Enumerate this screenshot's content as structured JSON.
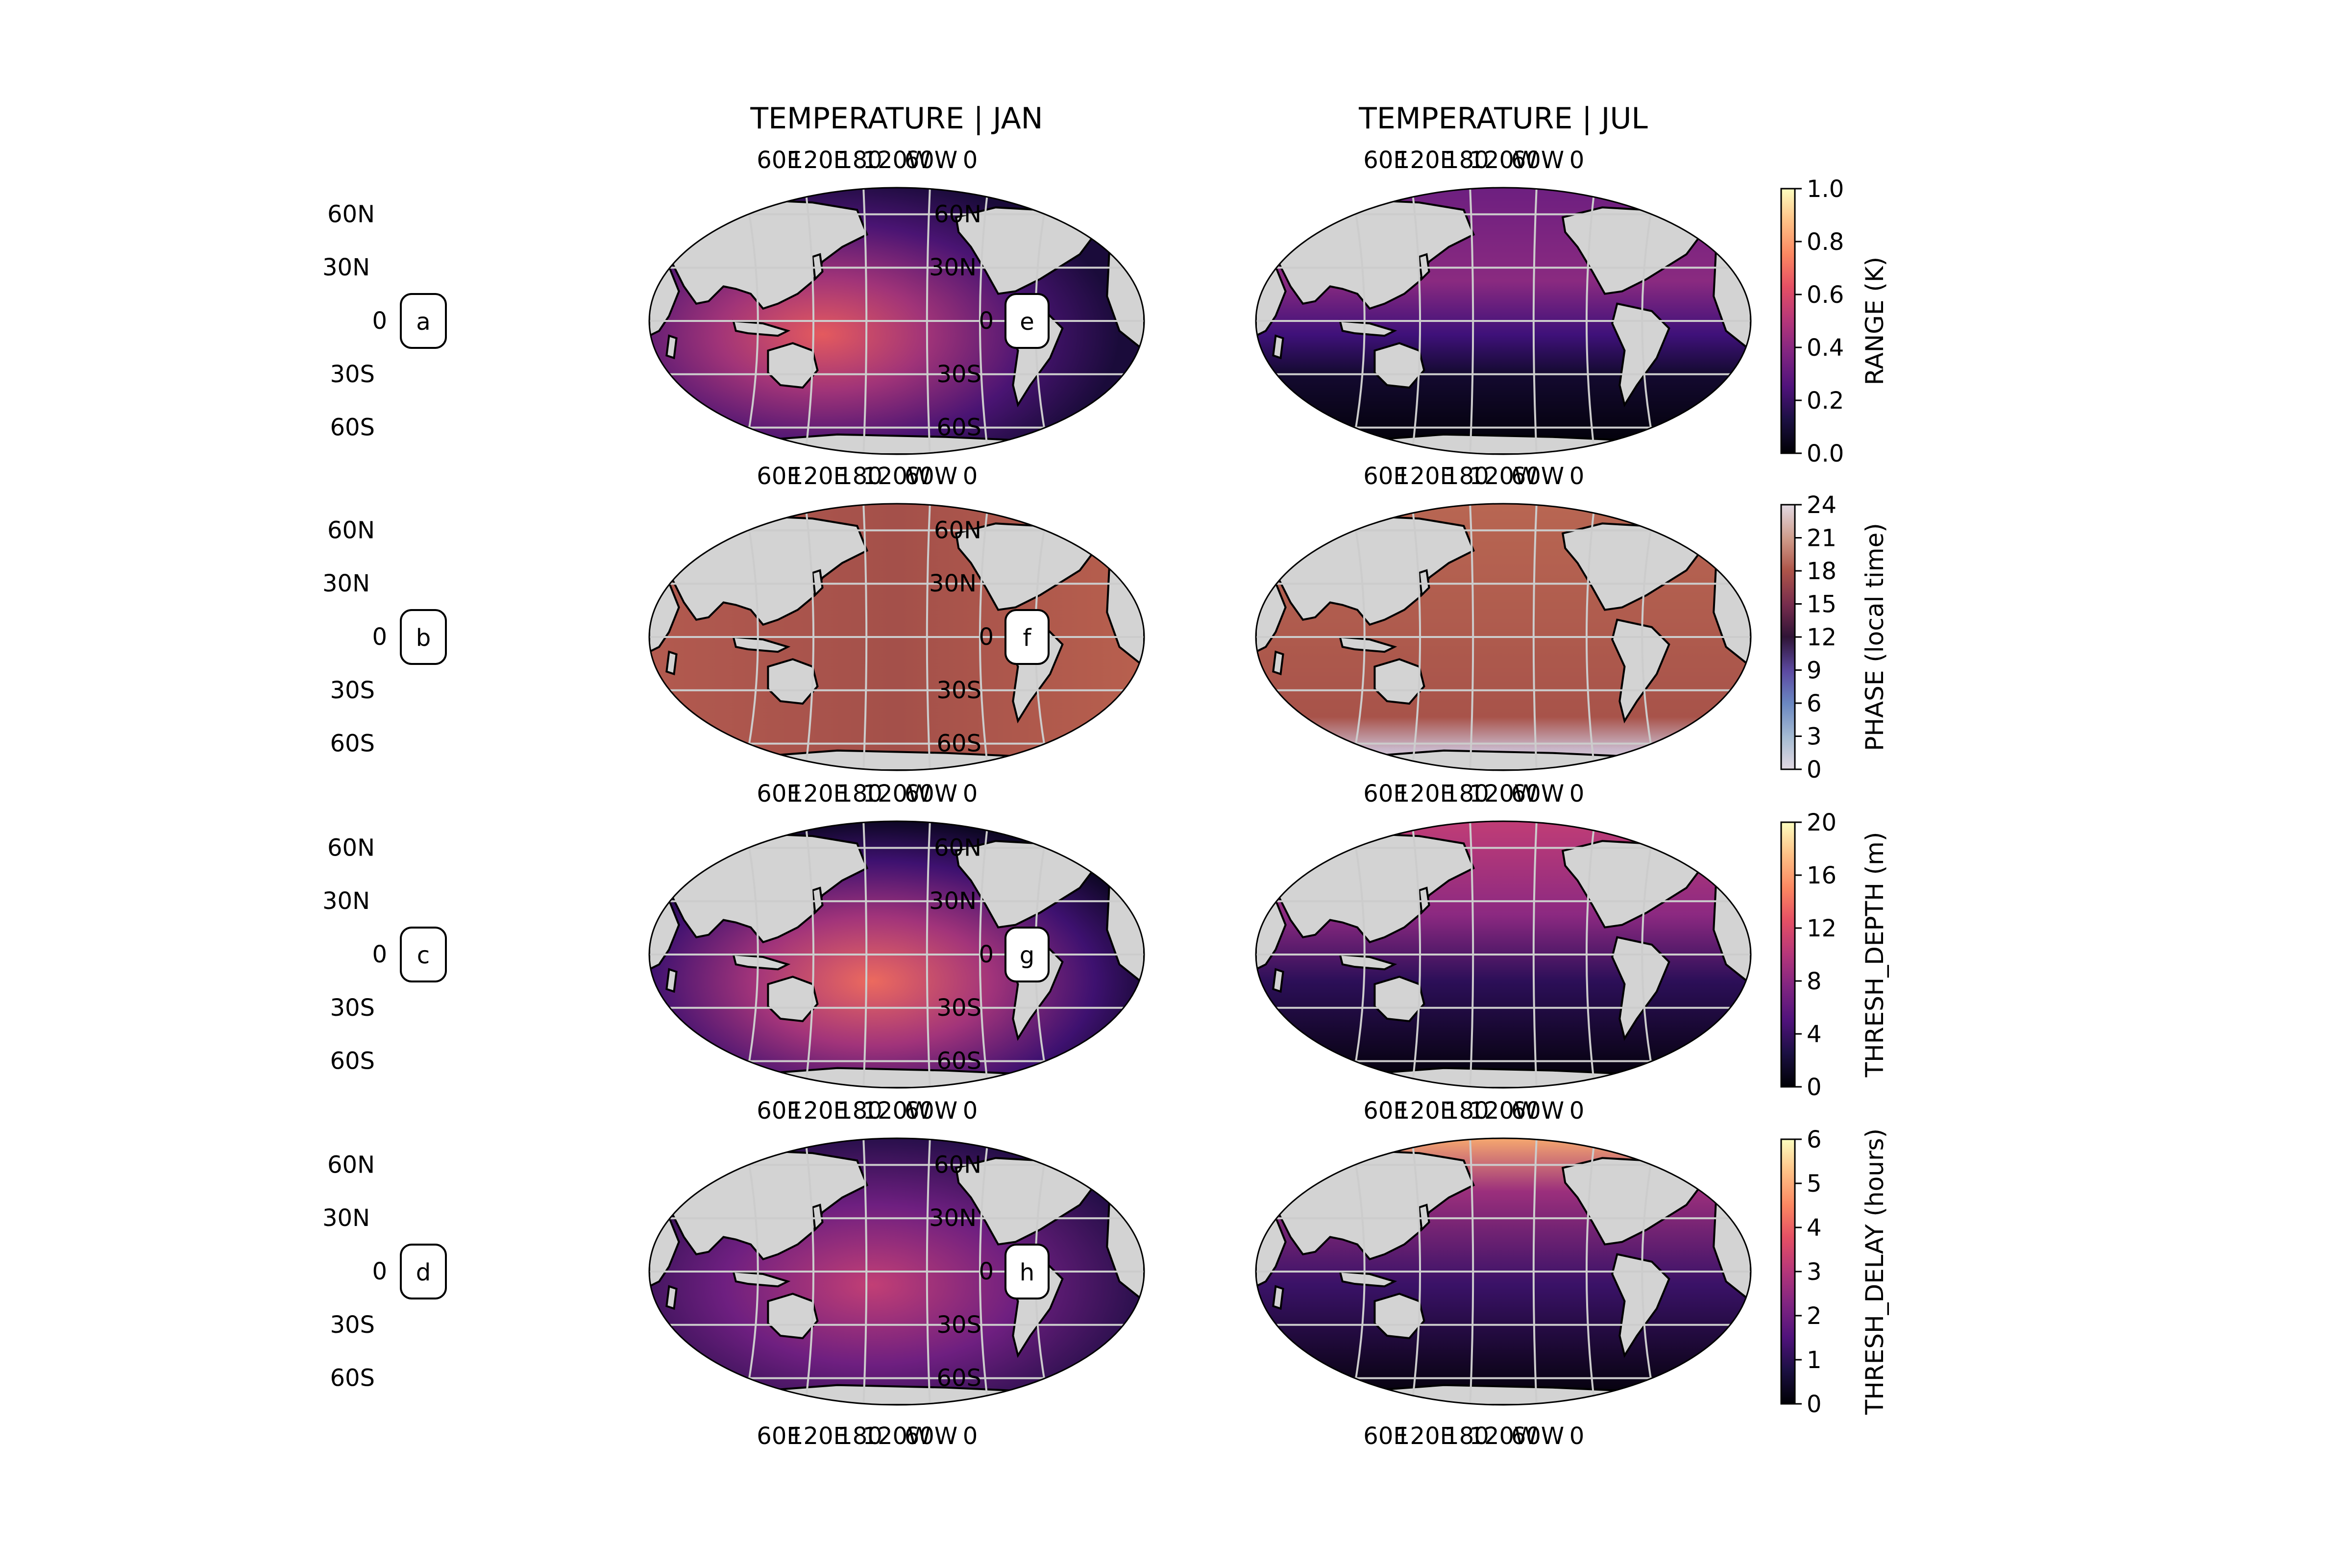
{
  "chart_data": {
    "type": "heatmap",
    "projection": "robinson",
    "central_longitude": "180",
    "column_titles": [
      "TEMPERATURE | JAN",
      "TEMPERATURE | JUL"
    ],
    "lon_tick_labels": [
      "60E",
      "120E",
      "180",
      "120W",
      "60W",
      "0"
    ],
    "lat_tick_labels": [
      "60N",
      "30N",
      "0",
      "30S",
      "60S"
    ],
    "row_labels": [
      "a",
      "b",
      "c",
      "d"
    ],
    "panel_labels": [
      "e",
      "f",
      "g",
      "h"
    ],
    "rows": [
      {
        "variable": "RANGE (K)",
        "colormap": "magma",
        "vmin": 0.0,
        "vmax": 1.0,
        "colorbar_ticks": [
          "0.0",
          "0.2",
          "0.4",
          "0.6",
          "0.8",
          "1.0"
        ],
        "colorbar_values": [
          0.0,
          0.2,
          0.4,
          0.6,
          0.8,
          1.0
        ]
      },
      {
        "variable": "PHASE (local time)",
        "colormap": "twilight",
        "vmin": 0,
        "vmax": 24,
        "colorbar_ticks": [
          "0",
          "3",
          "6",
          "9",
          "12",
          "15",
          "18",
          "21",
          "24"
        ],
        "colorbar_values": [
          0,
          3,
          6,
          9,
          12,
          15,
          18,
          21,
          24
        ]
      },
      {
        "variable": "THRESH_DEPTH (m)",
        "colormap": "magma",
        "vmin": 0,
        "vmax": 20,
        "colorbar_ticks": [
          "0",
          "4",
          "8",
          "12",
          "16",
          "20"
        ],
        "colorbar_values": [
          0,
          4,
          8,
          12,
          16,
          20
        ]
      },
      {
        "variable": "THRESH_DELAY (hours)",
        "colormap": "magma",
        "vmin": 0,
        "vmax": 6,
        "colorbar_ticks": [
          "0",
          "1",
          "2",
          "3",
          "4",
          "5",
          "6"
        ],
        "colorbar_values": [
          0,
          1,
          2,
          3,
          4,
          5,
          6
        ]
      }
    ],
    "colors": {
      "land": "#d3d3d3",
      "gridline": "#cccccc",
      "coast": "#000000"
    }
  }
}
